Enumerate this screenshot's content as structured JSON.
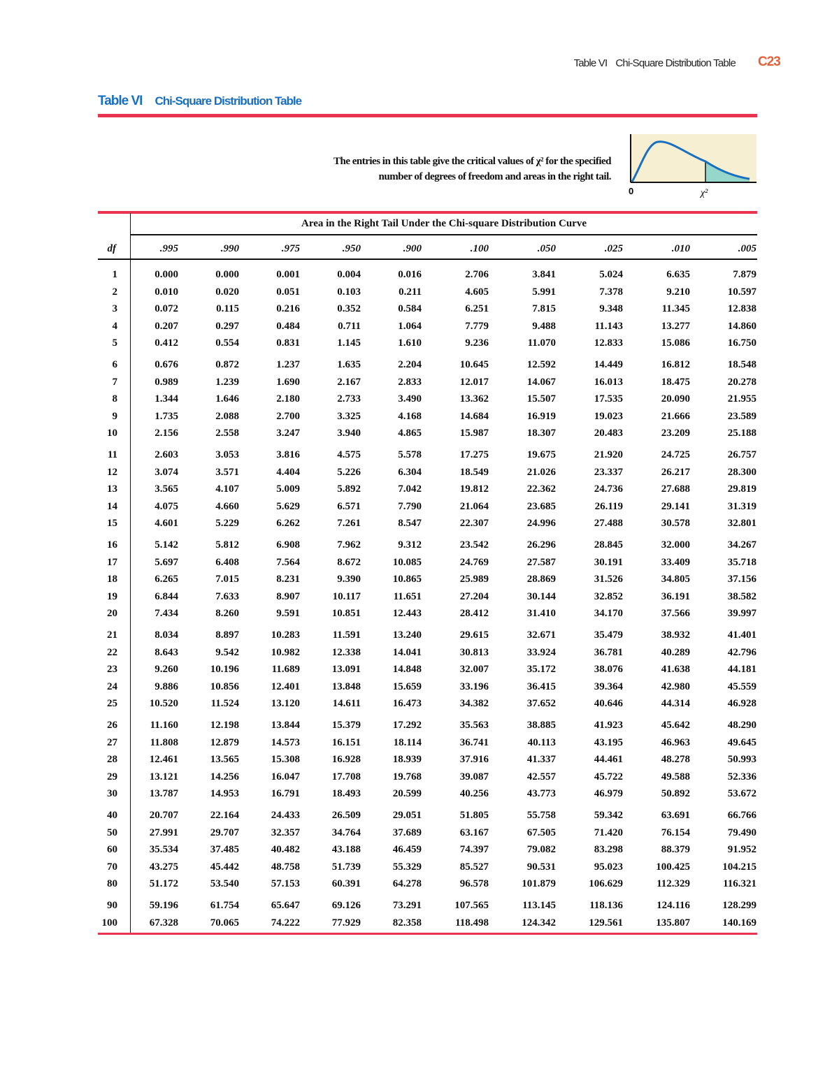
{
  "running_header": {
    "table": "Table VI",
    "title": "Chi-Square Distribution Table",
    "page": "C23"
  },
  "heading": {
    "label": "Table VI",
    "title": "Chi-Square Distribution Table"
  },
  "intro": {
    "line1": "The entries in this table give the critical values of χ² for the specified",
    "line2": "number of degrees of freedom and areas in the right tail."
  },
  "figure": {
    "origin_label": "0",
    "critical_label": "χ²",
    "fill_color": "#f6efd2",
    "curve_color": "#1a6fc0",
    "tail_color": "#7fd0c8"
  },
  "table": {
    "caption": "Area in the Right Tail Under the Chi-square Distribution Curve",
    "df_header": "df",
    "columns": [
      ".995",
      ".990",
      ".975",
      ".950",
      ".900",
      ".100",
      ".050",
      ".025",
      ".010",
      ".005"
    ],
    "groups": [
      [
        [
          "1",
          "0.000",
          "0.000",
          "0.001",
          "0.004",
          "0.016",
          "2.706",
          "3.841",
          "5.024",
          "6.635",
          "7.879"
        ],
        [
          "2",
          "0.010",
          "0.020",
          "0.051",
          "0.103",
          "0.211",
          "4.605",
          "5.991",
          "7.378",
          "9.210",
          "10.597"
        ],
        [
          "3",
          "0.072",
          "0.115",
          "0.216",
          "0.352",
          "0.584",
          "6.251",
          "7.815",
          "9.348",
          "11.345",
          "12.838"
        ],
        [
          "4",
          "0.207",
          "0.297",
          "0.484",
          "0.711",
          "1.064",
          "7.779",
          "9.488",
          "11.143",
          "13.277",
          "14.860"
        ],
        [
          "5",
          "0.412",
          "0.554",
          "0.831",
          "1.145",
          "1.610",
          "9.236",
          "11.070",
          "12.833",
          "15.086",
          "16.750"
        ]
      ],
      [
        [
          "6",
          "0.676",
          "0.872",
          "1.237",
          "1.635",
          "2.204",
          "10.645",
          "12.592",
          "14.449",
          "16.812",
          "18.548"
        ],
        [
          "7",
          "0.989",
          "1.239",
          "1.690",
          "2.167",
          "2.833",
          "12.017",
          "14.067",
          "16.013",
          "18.475",
          "20.278"
        ],
        [
          "8",
          "1.344",
          "1.646",
          "2.180",
          "2.733",
          "3.490",
          "13.362",
          "15.507",
          "17.535",
          "20.090",
          "21.955"
        ],
        [
          "9",
          "1.735",
          "2.088",
          "2.700",
          "3.325",
          "4.168",
          "14.684",
          "16.919",
          "19.023",
          "21.666",
          "23.589"
        ],
        [
          "10",
          "2.156",
          "2.558",
          "3.247",
          "3.940",
          "4.865",
          "15.987",
          "18.307",
          "20.483",
          "23.209",
          "25.188"
        ]
      ],
      [
        [
          "11",
          "2.603",
          "3.053",
          "3.816",
          "4.575",
          "5.578",
          "17.275",
          "19.675",
          "21.920",
          "24.725",
          "26.757"
        ],
        [
          "12",
          "3.074",
          "3.571",
          "4.404",
          "5.226",
          "6.304",
          "18.549",
          "21.026",
          "23.337",
          "26.217",
          "28.300"
        ],
        [
          "13",
          "3.565",
          "4.107",
          "5.009",
          "5.892",
          "7.042",
          "19.812",
          "22.362",
          "24.736",
          "27.688",
          "29.819"
        ],
        [
          "14",
          "4.075",
          "4.660",
          "5.629",
          "6.571",
          "7.790",
          "21.064",
          "23.685",
          "26.119",
          "29.141",
          "31.319"
        ],
        [
          "15",
          "4.601",
          "5.229",
          "6.262",
          "7.261",
          "8.547",
          "22.307",
          "24.996",
          "27.488",
          "30.578",
          "32.801"
        ]
      ],
      [
        [
          "16",
          "5.142",
          "5.812",
          "6.908",
          "7.962",
          "9.312",
          "23.542",
          "26.296",
          "28.845",
          "32.000",
          "34.267"
        ],
        [
          "17",
          "5.697",
          "6.408",
          "7.564",
          "8.672",
          "10.085",
          "24.769",
          "27.587",
          "30.191",
          "33.409",
          "35.718"
        ],
        [
          "18",
          "6.265",
          "7.015",
          "8.231",
          "9.390",
          "10.865",
          "25.989",
          "28.869",
          "31.526",
          "34.805",
          "37.156"
        ],
        [
          "19",
          "6.844",
          "7.633",
          "8.907",
          "10.117",
          "11.651",
          "27.204",
          "30.144",
          "32.852",
          "36.191",
          "38.582"
        ],
        [
          "20",
          "7.434",
          "8.260",
          "9.591",
          "10.851",
          "12.443",
          "28.412",
          "31.410",
          "34.170",
          "37.566",
          "39.997"
        ]
      ],
      [
        [
          "21",
          "8.034",
          "8.897",
          "10.283",
          "11.591",
          "13.240",
          "29.615",
          "32.671",
          "35.479",
          "38.932",
          "41.401"
        ],
        [
          "22",
          "8.643",
          "9.542",
          "10.982",
          "12.338",
          "14.041",
          "30.813",
          "33.924",
          "36.781",
          "40.289",
          "42.796"
        ],
        [
          "23",
          "9.260",
          "10.196",
          "11.689",
          "13.091",
          "14.848",
          "32.007",
          "35.172",
          "38.076",
          "41.638",
          "44.181"
        ],
        [
          "24",
          "9.886",
          "10.856",
          "12.401",
          "13.848",
          "15.659",
          "33.196",
          "36.415",
          "39.364",
          "42.980",
          "45.559"
        ],
        [
          "25",
          "10.520",
          "11.524",
          "13.120",
          "14.611",
          "16.473",
          "34.382",
          "37.652",
          "40.646",
          "44.314",
          "46.928"
        ]
      ],
      [
        [
          "26",
          "11.160",
          "12.198",
          "13.844",
          "15.379",
          "17.292",
          "35.563",
          "38.885",
          "41.923",
          "45.642",
          "48.290"
        ],
        [
          "27",
          "11.808",
          "12.879",
          "14.573",
          "16.151",
          "18.114",
          "36.741",
          "40.113",
          "43.195",
          "46.963",
          "49.645"
        ],
        [
          "28",
          "12.461",
          "13.565",
          "15.308",
          "16.928",
          "18.939",
          "37.916",
          "41.337",
          "44.461",
          "48.278",
          "50.993"
        ],
        [
          "29",
          "13.121",
          "14.256",
          "16.047",
          "17.708",
          "19.768",
          "39.087",
          "42.557",
          "45.722",
          "49.588",
          "52.336"
        ],
        [
          "30",
          "13.787",
          "14.953",
          "16.791",
          "18.493",
          "20.599",
          "40.256",
          "43.773",
          "46.979",
          "50.892",
          "53.672"
        ]
      ],
      [
        [
          "40",
          "20.707",
          "22.164",
          "24.433",
          "26.509",
          "29.051",
          "51.805",
          "55.758",
          "59.342",
          "63.691",
          "66.766"
        ],
        [
          "50",
          "27.991",
          "29.707",
          "32.357",
          "34.764",
          "37.689",
          "63.167",
          "67.505",
          "71.420",
          "76.154",
          "79.490"
        ],
        [
          "60",
          "35.534",
          "37.485",
          "40.482",
          "43.188",
          "46.459",
          "74.397",
          "79.082",
          "83.298",
          "88.379",
          "91.952"
        ],
        [
          "70",
          "43.275",
          "45.442",
          "48.758",
          "51.739",
          "55.329",
          "85.527",
          "90.531",
          "95.023",
          "100.425",
          "104.215"
        ],
        [
          "80",
          "51.172",
          "53.540",
          "57.153",
          "60.391",
          "64.278",
          "96.578",
          "101.879",
          "106.629",
          "112.329",
          "116.321"
        ]
      ],
      [
        [
          "90",
          "59.196",
          "61.754",
          "65.647",
          "69.126",
          "73.291",
          "107.565",
          "113.145",
          "118.136",
          "124.116",
          "128.299"
        ],
        [
          "100",
          "67.328",
          "70.065",
          "74.222",
          "77.929",
          "82.358",
          "118.498",
          "124.342",
          "129.561",
          "135.807",
          "140.169"
        ]
      ]
    ]
  }
}
